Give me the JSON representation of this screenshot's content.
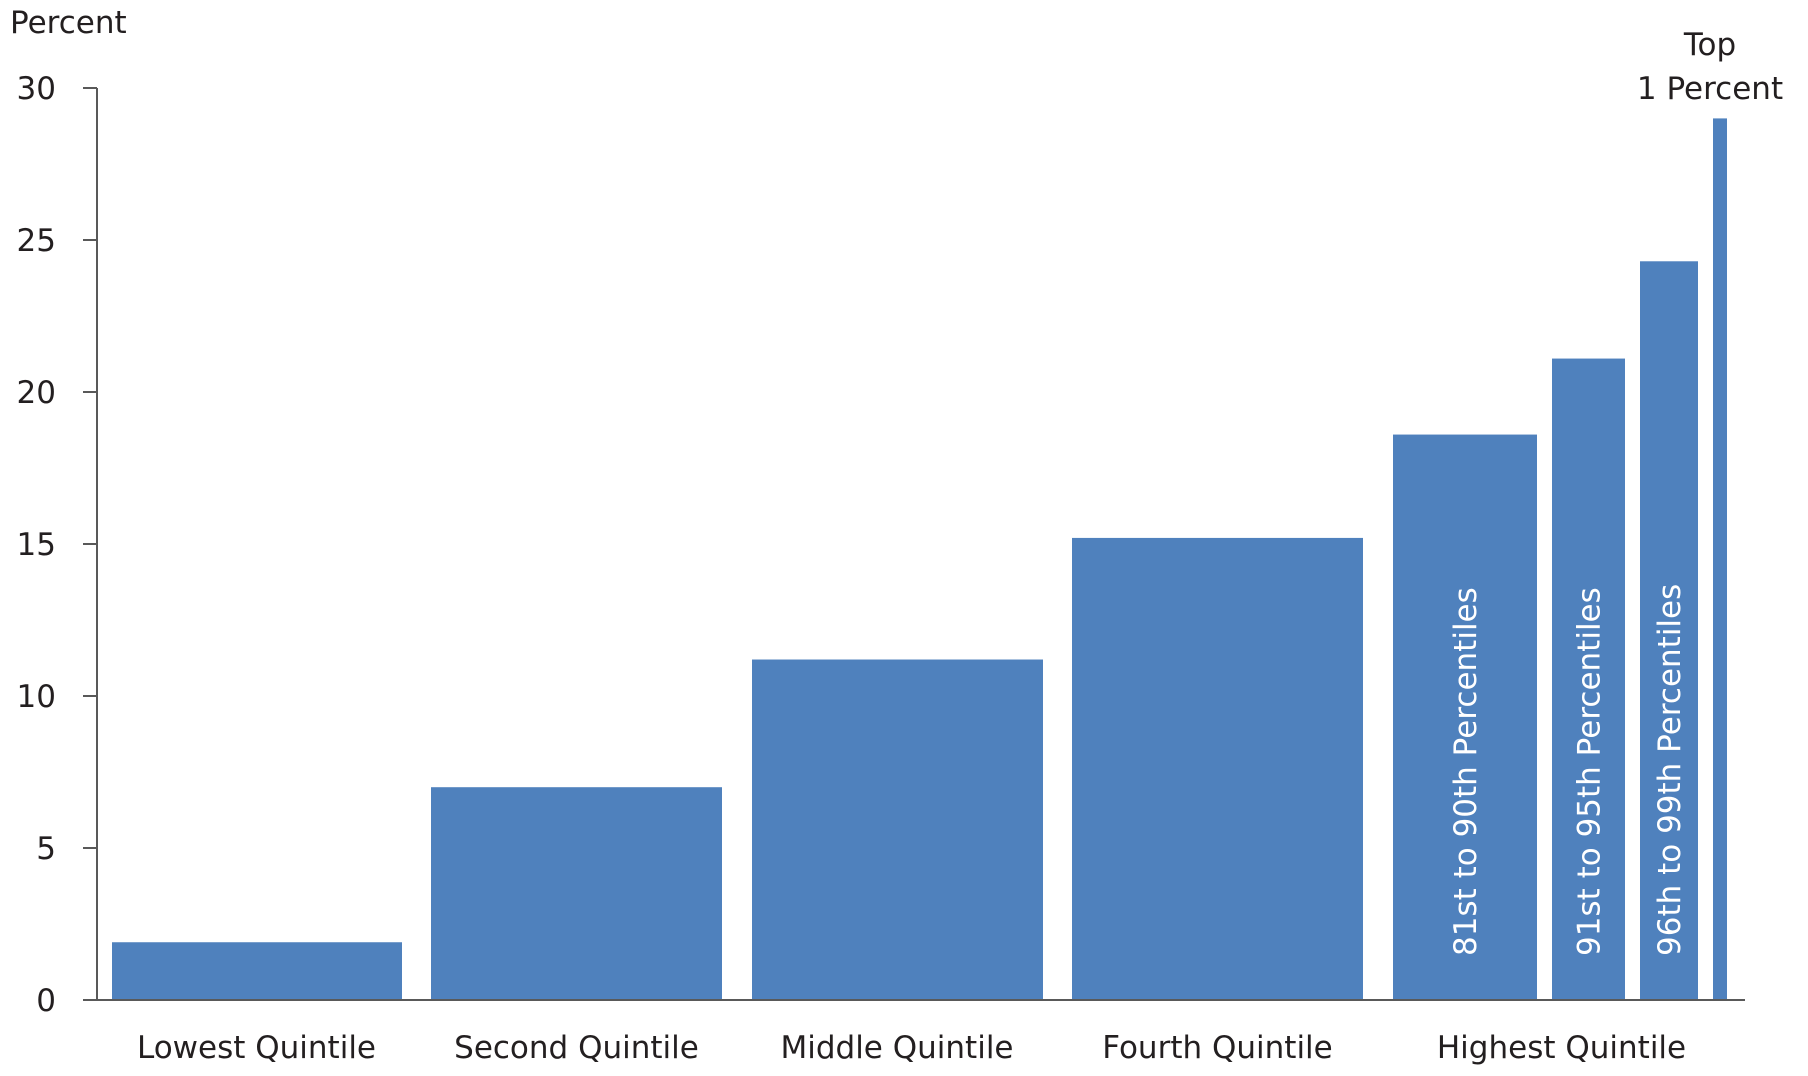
{
  "chart_data": {
    "type": "bar",
    "ylabel": "Percent",
    "ylim": [
      0,
      30
    ],
    "yticks": [
      "0",
      "5",
      "10",
      "15",
      "20",
      "25",
      "30"
    ],
    "categories": [
      "Lowest Quintile",
      "Second Quintile",
      "Middle Quintile",
      "Fourth Quintile",
      "Highest Quintile"
    ],
    "bars": [
      {
        "value": 1.9,
        "group": 0
      },
      {
        "value": 7.0,
        "group": 1
      },
      {
        "value": 11.2,
        "group": 2
      },
      {
        "value": 15.2,
        "group": 3
      },
      {
        "value": 18.6,
        "group": 4,
        "label": "81st to 90th Percentiles"
      },
      {
        "value": 21.1,
        "group": 4,
        "label": "91st to 95th Percentiles"
      },
      {
        "value": 24.3,
        "group": 4,
        "label": "96th to 99th Percentiles"
      },
      {
        "value": 29.0,
        "group": 4,
        "label_above": [
          "Top",
          "1 Percent"
        ]
      }
    ],
    "bar_color": "#4f81bd",
    "grid": false,
    "legend": "none"
  }
}
